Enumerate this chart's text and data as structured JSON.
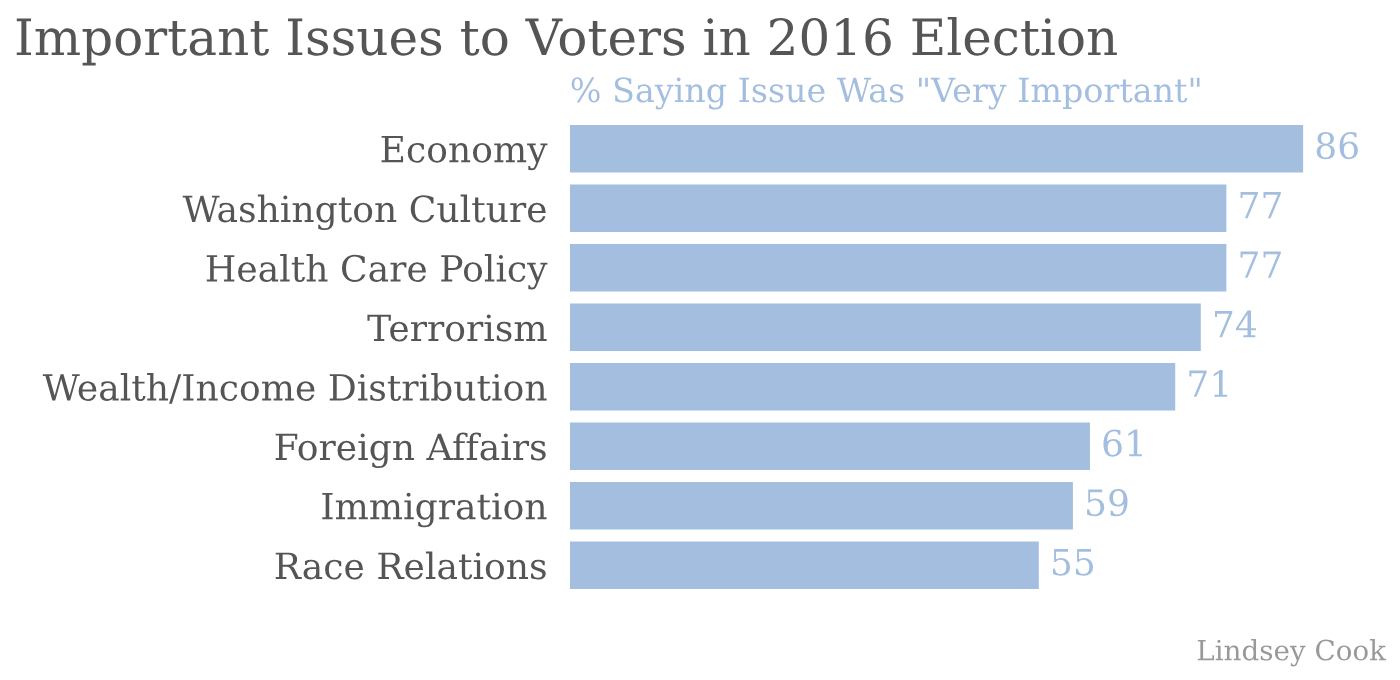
{
  "chart_data": {
    "type": "bar",
    "orientation": "horizontal",
    "title": "Important Issues to Voters in 2016 Election",
    "subtitle": "% Saying Issue Was \"Very Important\"",
    "categories": [
      "Economy",
      "Washington Culture",
      "Health Care Policy",
      "Terrorism",
      "Wealth/Income Distribution",
      "Foreign Affairs",
      "Immigration",
      "Race Relations"
    ],
    "values": [
      86,
      77,
      77,
      74,
      71,
      61,
      59,
      55
    ],
    "color": "#a3bedf",
    "data_labels": true,
    "annotations": [
      "Lindsey Cook"
    ]
  }
}
